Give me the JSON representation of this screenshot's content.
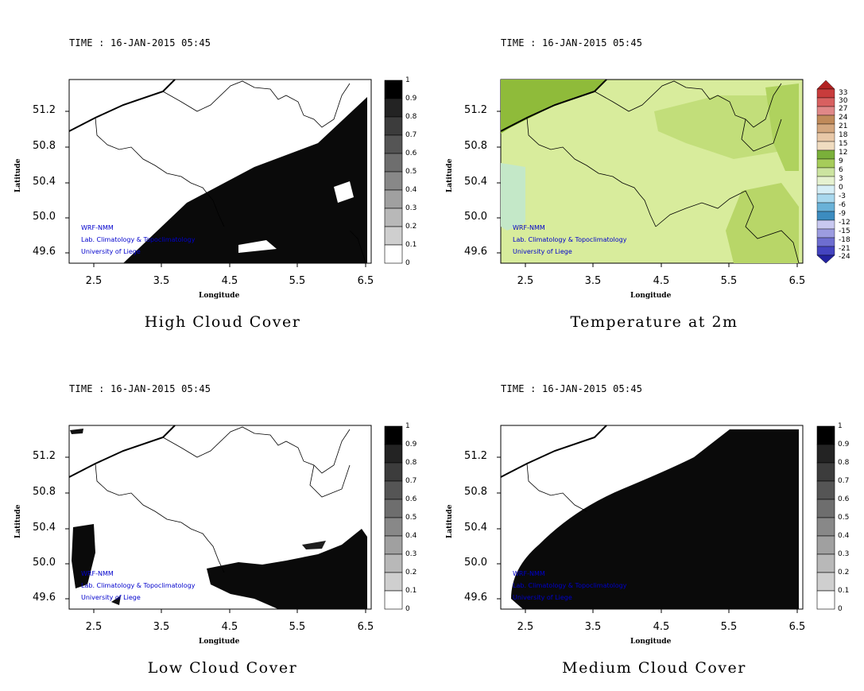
{
  "panels": [
    {
      "id": "high",
      "time": "TIME : 16-JAN-2015 05:45",
      "caption": "High Cloud Cover",
      "xlabel": "Longitude",
      "ylabel": "Latitude",
      "xticks": [
        "2.5",
        "3.5",
        "4.5",
        "5.5",
        "6.5"
      ],
      "yticks": [
        "51.2",
        "50.8",
        "50.4",
        "50.0",
        "49.6"
      ],
      "cb_ticks": [
        "1",
        "0.9",
        "0.8",
        "0.7",
        "0.6",
        "0.5",
        "0.4",
        "0.3",
        "0.2",
        "0.1",
        "0"
      ],
      "credits": [
        "WRF-NMM",
        "Lab. Climatology & Topoclimatology",
        "University of Liege"
      ]
    },
    {
      "id": "temp",
      "time": "TIME : 16-JAN-2015 05:45",
      "caption": "Temperature at 2m",
      "xlabel": "Longitude",
      "ylabel": "Latitude",
      "xticks": [
        "2.5",
        "3.5",
        "4.5",
        "5.5",
        "6.5"
      ],
      "yticks": [
        "51.2",
        "50.8",
        "50.4",
        "50.0",
        "49.6"
      ],
      "cb_ticks": [
        "33",
        "30",
        "27",
        "24",
        "21",
        "18",
        "15",
        "12",
        "9",
        "6",
        "3",
        "0",
        "-3",
        "-6",
        "-9",
        "-12",
        "-15",
        "-18",
        "-21",
        "-24"
      ],
      "credits": [
        "WRF-NMM",
        "Lab. Climatology & Topoclimatology",
        "University of Liege"
      ]
    },
    {
      "id": "low",
      "time": "TIME : 16-JAN-2015 05:45",
      "caption": "Low Cloud Cover",
      "xlabel": "Longitude",
      "ylabel": "Latitude",
      "xticks": [
        "2.5",
        "3.5",
        "4.5",
        "5.5",
        "6.5"
      ],
      "yticks": [
        "51.2",
        "50.8",
        "50.4",
        "50.0",
        "49.6"
      ],
      "cb_ticks": [
        "1",
        "0.9",
        "0.8",
        "0.7",
        "0.6",
        "0.5",
        "0.4",
        "0.3",
        "0.2",
        "0.1",
        "0"
      ],
      "credits": [
        "WRF-NMM",
        "Lab. Climatology & Topoclimatology",
        "University of Liege"
      ]
    },
    {
      "id": "medium",
      "time": "TIME : 16-JAN-2015 05:45",
      "caption": "Medium Cloud Cover",
      "xlabel": "Longitude",
      "ylabel": "Latitude",
      "xticks": [
        "2.5",
        "3.5",
        "4.5",
        "5.5",
        "6.5"
      ],
      "yticks": [
        "51.2",
        "50.8",
        "50.4",
        "50.0",
        "49.6"
      ],
      "cb_ticks": [
        "1",
        "0.9",
        "0.8",
        "0.7",
        "0.6",
        "0.5",
        "0.4",
        "0.3",
        "0.2",
        "0.1",
        "0"
      ],
      "credits": [
        "WRF-NMM",
        "Lab. Climatology & Topoclimatology",
        "University of Liege"
      ]
    }
  ],
  "colors": {
    "cloud_scale": [
      "#ffffff",
      "#e6e6e6",
      "#cfcfcf",
      "#b8b8b8",
      "#a0a0a0",
      "#888888",
      "#6e6e6e",
      "#555555",
      "#3c3c3c",
      "#232323",
      "#000000"
    ],
    "temp_land": "#d8ec9c",
    "temp_warm": "#a9cc55",
    "temp_cold": "#bfe6cc",
    "border": "#000000"
  }
}
